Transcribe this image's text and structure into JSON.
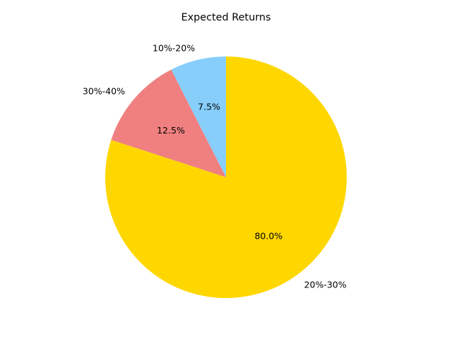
{
  "chart_data": {
    "type": "pie",
    "title": "Expected Returns",
    "categories": [
      "10%-20%",
      "30%-40%",
      "20%-30%"
    ],
    "values": [
      7.5,
      12.5,
      80.0
    ],
    "pct_labels": [
      "7.5%",
      "12.5%",
      "80.0%"
    ],
    "colors": [
      "#87CEFA",
      "#F08080",
      "#FFD700"
    ],
    "start_angle_deg": 90,
    "direction": "counterclockwise"
  }
}
